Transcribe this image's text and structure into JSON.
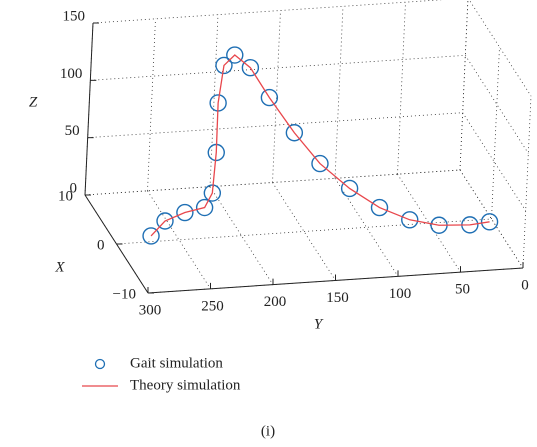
{
  "chart_data": {
    "type": "scatter3d",
    "xlabel": "X",
    "ylabel": "Y",
    "zlabel": "Z",
    "caption": "(i)",
    "xlim": [
      -10,
      10
    ],
    "ylim": [
      0,
      300
    ],
    "zlim": [
      0,
      150
    ],
    "xticks": [
      {
        "value": -10,
        "label": "−10"
      },
      0,
      10
    ],
    "yticks": [
      0,
      50,
      100,
      150,
      200,
      250,
      300
    ],
    "zticks": [
      0,
      50,
      100,
      150
    ],
    "grid": true,
    "series": [
      {
        "name": "Gait simulation",
        "color": "#1f6fb4",
        "marker": "circle",
        "x": [
          -2,
          -1.5,
          -1,
          -0.5,
          0,
          0.5,
          1,
          2,
          3,
          3,
          2.5,
          2,
          1,
          0,
          -1,
          -2,
          -3,
          -4,
          -5
        ],
        "y": [
          278,
          266,
          249,
          232,
          225,
          222,
          221,
          215,
          204,
          191,
          176,
          156,
          137,
          115,
          93,
          71,
          50,
          28,
          15
        ],
        "z": [
          14,
          24,
          28,
          29,
          39,
          72,
          113,
          141,
          145,
          133,
          108,
          78,
          54,
          35,
          21,
          13,
          11,
          14,
          20
        ]
      },
      {
        "name": "Theory simulation",
        "color": "#e8474c",
        "marker": "line",
        "x": [
          -2,
          -1.5,
          -1,
          -0.5,
          0,
          0.5,
          1,
          2,
          3,
          3,
          2.5,
          2,
          1,
          0,
          -1,
          -2,
          -3,
          -4,
          -5
        ],
        "y": [
          278,
          266,
          249,
          232,
          225,
          222,
          221,
          215,
          204,
          191,
          176,
          156,
          137,
          115,
          93,
          71,
          50,
          28,
          15
        ],
        "z": [
          14,
          24,
          28,
          29,
          39,
          72,
          113,
          141,
          145,
          133,
          108,
          78,
          54,
          35,
          21,
          13,
          11,
          14,
          20
        ]
      }
    ]
  }
}
